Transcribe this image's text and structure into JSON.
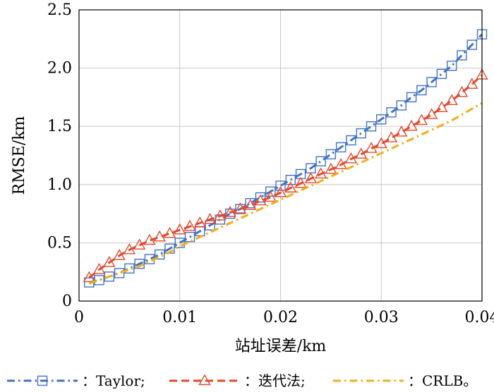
{
  "chart_data": {
    "type": "line",
    "xlabel": "站址误差/km",
    "ylabel": "RMSE/km",
    "xlim": [
      0,
      0.04
    ],
    "ylim": [
      0,
      2.5
    ],
    "xticks": [
      0,
      0.01,
      0.02,
      0.03,
      0.04
    ],
    "xtick_labels": [
      "0",
      "0.01",
      "0.02",
      "0.03",
      "0.04"
    ],
    "yticks": [
      0,
      0.5,
      1.0,
      1.5,
      2.0,
      2.5
    ],
    "ytick_labels": [
      "0",
      "0.5",
      "1.0",
      "1.5",
      "2.0",
      "2.5"
    ],
    "grid": true,
    "legend_position": "bottom",
    "x": [
      0.001,
      0.002,
      0.003,
      0.004,
      0.005,
      0.006,
      0.007,
      0.008,
      0.009,
      0.01,
      0.011,
      0.012,
      0.013,
      0.014,
      0.015,
      0.016,
      0.017,
      0.018,
      0.019,
      0.02,
      0.021,
      0.022,
      0.023,
      0.024,
      0.025,
      0.026,
      0.027,
      0.028,
      0.029,
      0.03,
      0.031,
      0.032,
      0.033,
      0.034,
      0.035,
      0.036,
      0.037,
      0.038,
      0.039,
      0.04
    ],
    "series": [
      {
        "name": "Taylor",
        "color": "#4472c4",
        "marker": "square",
        "line_style": "dash-dot",
        "legend_label": "：Taylor;",
        "values": [
          0.16,
          0.18,
          0.21,
          0.24,
          0.28,
          0.32,
          0.36,
          0.4,
          0.45,
          0.5,
          0.55,
          0.6,
          0.65,
          0.7,
          0.75,
          0.79,
          0.84,
          0.89,
          0.94,
          0.99,
          1.04,
          1.09,
          1.14,
          1.2,
          1.26,
          1.32,
          1.38,
          1.44,
          1.5,
          1.56,
          1.62,
          1.68,
          1.75,
          1.81,
          1.88,
          1.95,
          2.02,
          2.11,
          2.2,
          2.29
        ]
      },
      {
        "name": "迭代法",
        "color": "#e0492e",
        "marker": "triangle",
        "line_style": "dash",
        "legend_label": "：迭代法;",
        "values": [
          0.2,
          0.27,
          0.33,
          0.39,
          0.44,
          0.48,
          0.52,
          0.55,
          0.58,
          0.61,
          0.64,
          0.67,
          0.7,
          0.73,
          0.76,
          0.79,
          0.82,
          0.86,
          0.89,
          0.93,
          0.97,
          1.01,
          1.05,
          1.09,
          1.13,
          1.17,
          1.22,
          1.26,
          1.31,
          1.35,
          1.4,
          1.45,
          1.5,
          1.55,
          1.6,
          1.66,
          1.72,
          1.79,
          1.86,
          1.94
        ]
      },
      {
        "name": "CRLB",
        "color": "#f0b020",
        "marker": "none",
        "line_style": "dash-dot",
        "legend_label": "：CRLB。",
        "values": [
          0.15,
          0.18,
          0.21,
          0.24,
          0.27,
          0.3,
          0.34,
          0.38,
          0.42,
          0.47,
          0.51,
          0.55,
          0.59,
          0.63,
          0.67,
          0.71,
          0.75,
          0.79,
          0.83,
          0.87,
          0.91,
          0.95,
          0.99,
          1.03,
          1.07,
          1.11,
          1.15,
          1.19,
          1.23,
          1.27,
          1.31,
          1.35,
          1.39,
          1.43,
          1.47,
          1.51,
          1.55,
          1.6,
          1.65,
          1.7
        ]
      }
    ]
  }
}
